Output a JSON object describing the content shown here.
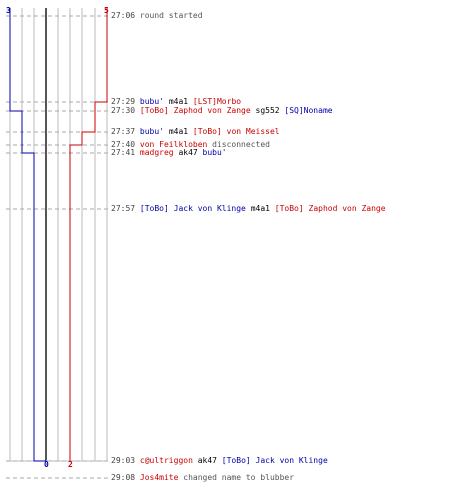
{
  "colors": {
    "blue": "#0000aa",
    "red": "#cc0000",
    "grid": "#bbbbbb",
    "center": "#555555",
    "dash": "#aaaaaa"
  },
  "scores": {
    "blue_start": "3",
    "red_start": "5",
    "blue_end": "0",
    "red_end": "2"
  },
  "events": [
    {
      "time": "27:06",
      "parts": [
        {
          "text": "round started",
          "cls": "sys"
        }
      ]
    },
    {
      "time": "27:29",
      "parts": [
        {
          "text": "bubu'",
          "cls": "blue"
        },
        {
          "text": " m4a1 ",
          "cls": "weap"
        },
        {
          "text": "[LST]Morbo",
          "cls": "red"
        }
      ]
    },
    {
      "time": "27:30",
      "parts": [
        {
          "text": "[ToBo] Zaphod von Zange",
          "cls": "red"
        },
        {
          "text": " sg552 ",
          "cls": "weap"
        },
        {
          "text": "[SQ]Noname",
          "cls": "blue"
        }
      ]
    },
    {
      "time": "27:37",
      "parts": [
        {
          "text": "bubu'",
          "cls": "blue"
        },
        {
          "text": " m4a1 ",
          "cls": "weap"
        },
        {
          "text": "[ToBo] von Meissel",
          "cls": "red"
        }
      ]
    },
    {
      "time": "27:40",
      "parts": [
        {
          "text": "von Feilkloben",
          "cls": "red"
        },
        {
          "text": " disconnected",
          "cls": "sys"
        }
      ]
    },
    {
      "time": "27:41",
      "parts": [
        {
          "text": "madgreg",
          "cls": "red"
        },
        {
          "text": " ak47 ",
          "cls": "weap"
        },
        {
          "text": "bubu'",
          "cls": "blue"
        }
      ]
    },
    {
      "time": "27:57",
      "parts": [
        {
          "text": "[ToBo] Jack von Klinge",
          "cls": "blue"
        },
        {
          "text": " m4a1 ",
          "cls": "weap"
        },
        {
          "text": "[ToBo] Zaphod von Zange",
          "cls": "red"
        }
      ]
    },
    {
      "time": "29:03",
      "parts": [
        {
          "text": "c@ultriggon",
          "cls": "red"
        },
        {
          "text": " ak47 ",
          "cls": "weap"
        },
        {
          "text": "[ToBo] Jack von Klinge",
          "cls": "blue"
        }
      ]
    },
    {
      "time": "29:08",
      "parts": [
        {
          "text": "Jos4mite",
          "cls": "red"
        },
        {
          "text": " changed name to blubber",
          "cls": "sys"
        }
      ]
    }
  ]
}
